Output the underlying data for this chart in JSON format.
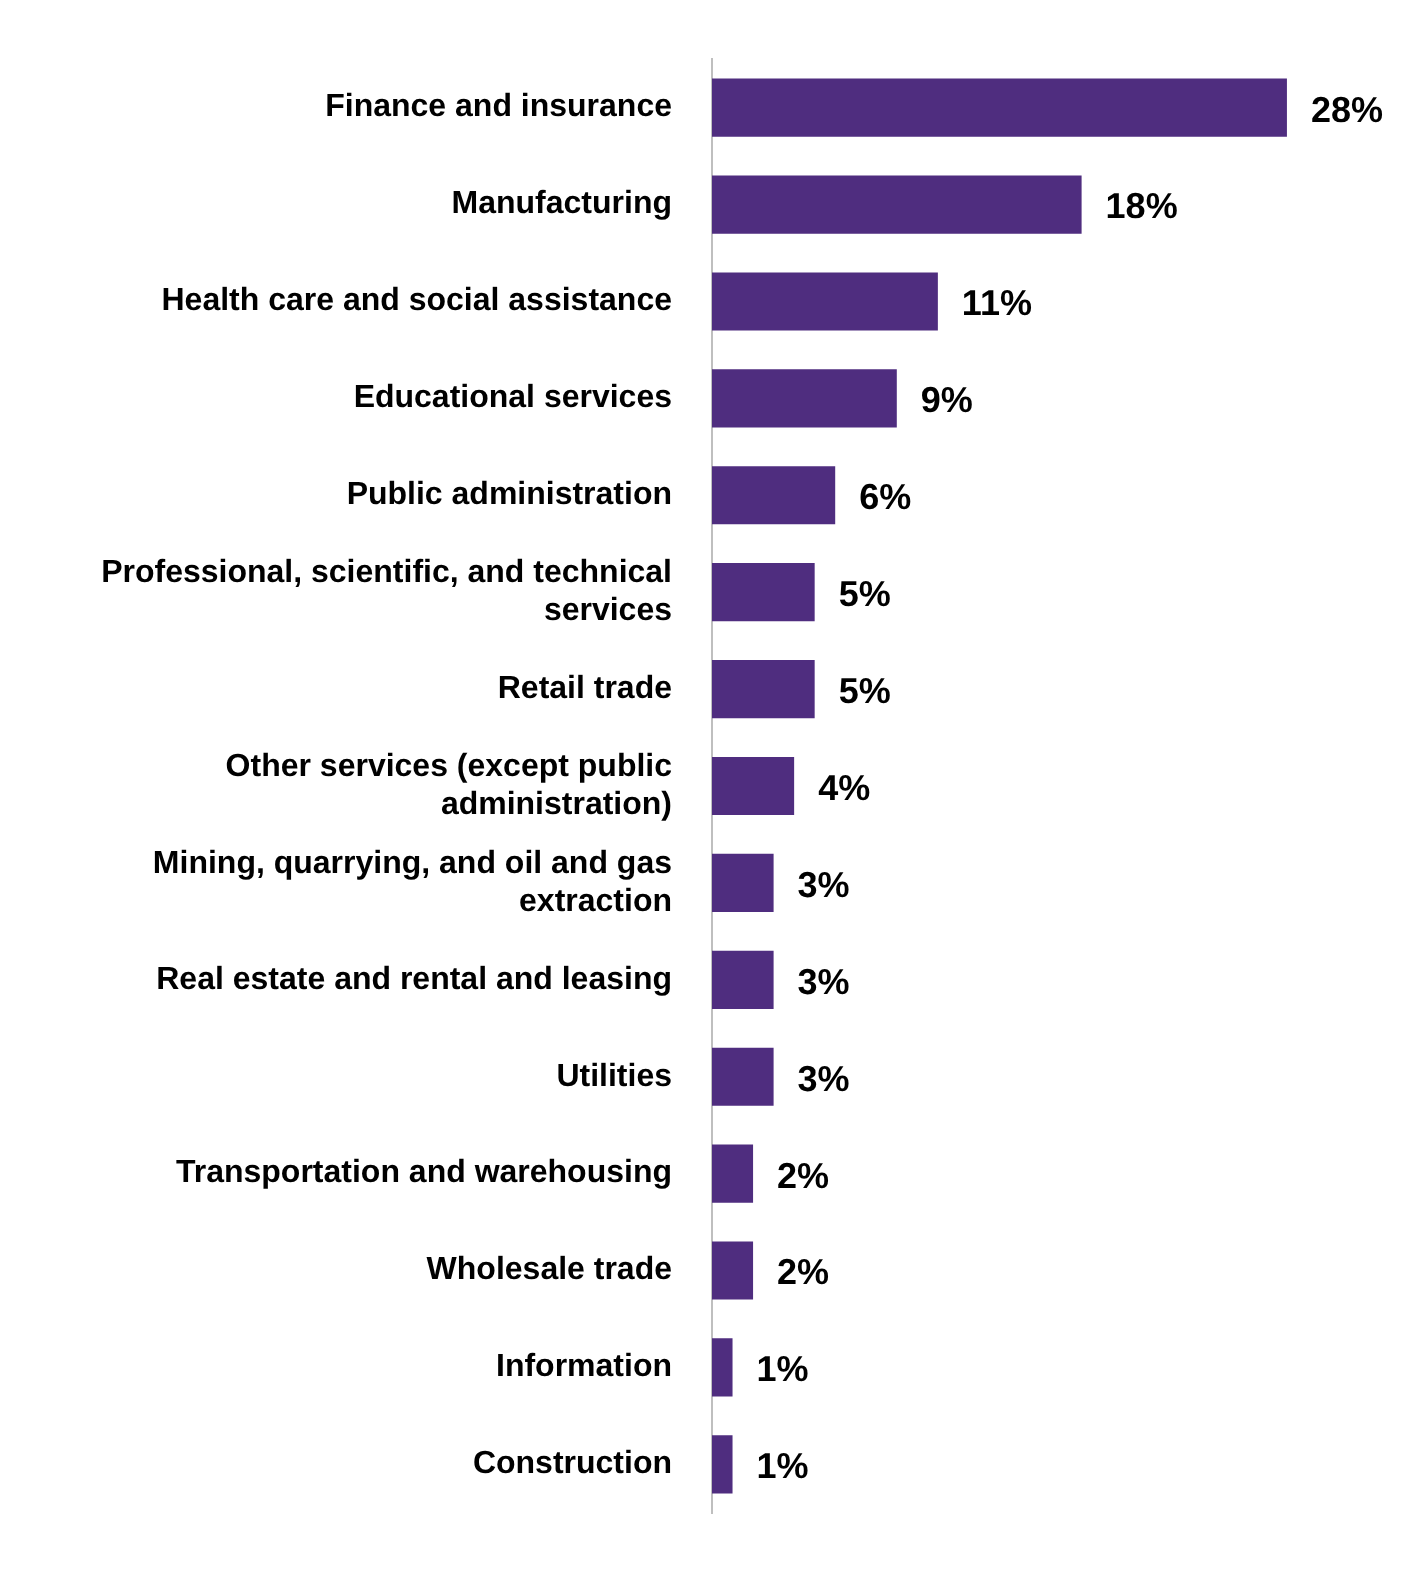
{
  "chart_data": {
    "type": "bar",
    "orientation": "horizontal",
    "categories": [
      "Finance and insurance",
      "Manufacturing",
      "Health care and social assistance",
      "Educational services",
      "Public administration",
      "Professional, scientific, and technical services",
      "Retail trade",
      "Other services (except public administration)",
      "Mining, quarrying, and oil and gas extraction",
      "Real estate and rental and leasing",
      "Utilities",
      "Transportation and warehousing",
      "Wholesale trade",
      "Information",
      "Construction"
    ],
    "values": [
      28,
      18,
      11,
      9,
      6,
      5,
      5,
      4,
      3,
      3,
      3,
      2,
      2,
      1,
      1
    ],
    "value_labels": [
      "28%",
      "18%",
      "11%",
      "9%",
      "6%",
      "5%",
      "5%",
      "4%",
      "3%",
      "3%",
      "3%",
      "2%",
      "2%",
      "1%",
      "1%"
    ],
    "color": "#4f2d7f"
  }
}
